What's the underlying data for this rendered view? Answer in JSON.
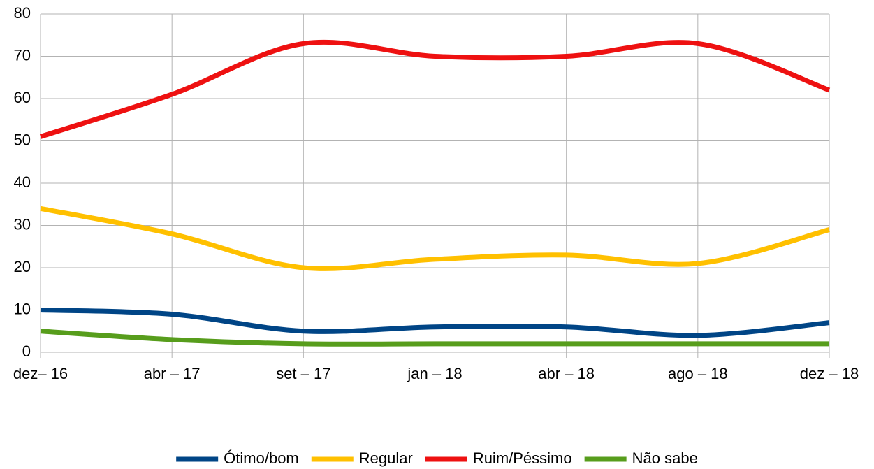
{
  "chart_data": {
    "type": "line",
    "categories": [
      "dez– 16",
      "abr – 17",
      "set – 17",
      "jan – 18",
      "abr – 18",
      "ago – 18",
      "dez – 18"
    ],
    "series": [
      {
        "name": "Ótimo/bom",
        "color": "#004586",
        "values": [
          10,
          9,
          5,
          6,
          6,
          4,
          7
        ]
      },
      {
        "name": "Regular",
        "color": "#ffc000",
        "values": [
          34,
          28,
          20,
          22,
          23,
          21,
          29
        ]
      },
      {
        "name": "Ruim/Péssimo",
        "color": "#ee1111",
        "values": [
          51,
          61,
          73,
          70,
          70,
          73,
          62
        ]
      },
      {
        "name": "Não sabe",
        "color": "#579d1c",
        "values": [
          5,
          3,
          2,
          2,
          2,
          2,
          2
        ]
      }
    ],
    "ylim": [
      0,
      80
    ],
    "yticks": [
      0,
      10,
      20,
      30,
      40,
      50,
      60,
      70,
      80
    ],
    "grid": true,
    "smooth": true,
    "legend": "bottom"
  }
}
